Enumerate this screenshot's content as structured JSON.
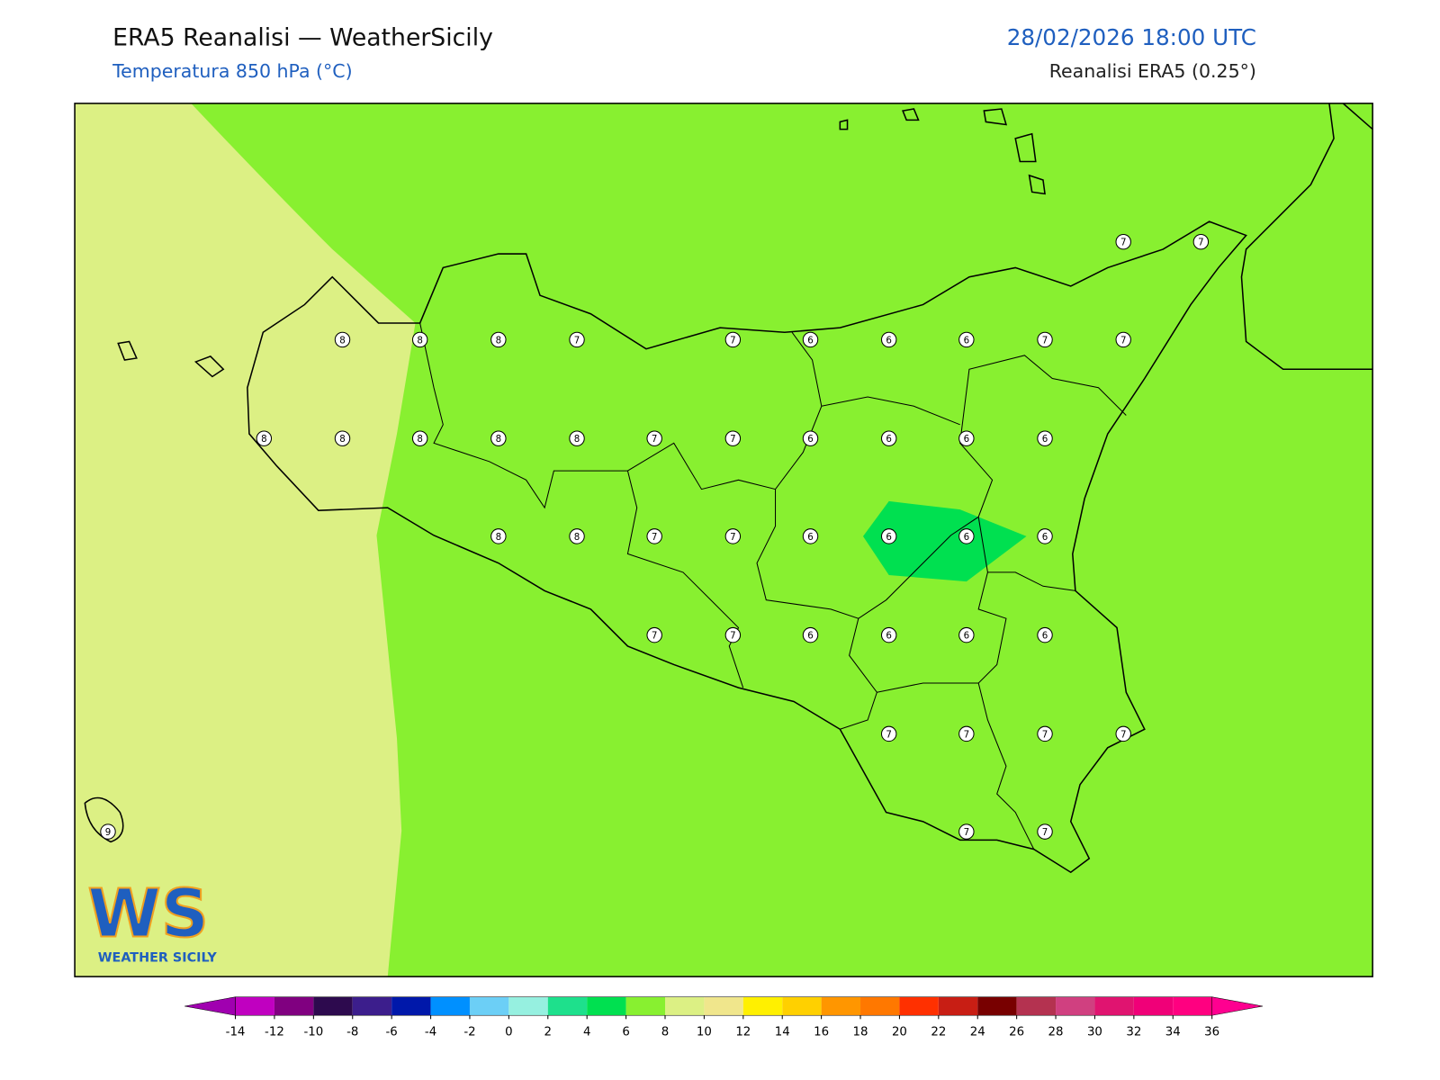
{
  "header": {
    "title": "ERA5 Reanalisi — WeatherSicily",
    "subtitle": "Temperatura 850 hPa (°C)",
    "datetime": "28/02/2026 18:00 UTC",
    "source": "Reanalisi ERA5 (0.25°)"
  },
  "stations": [
    8,
    8,
    8,
    7,
    7,
    6,
    6,
    6,
    7,
    7,
    7,
    7,
    8,
    8,
    8,
    8,
    8,
    7,
    7,
    6,
    6,
    6,
    6,
    8,
    8,
    7,
    7,
    6,
    6,
    6,
    6,
    7,
    7,
    6,
    6,
    6,
    6,
    7,
    7,
    7,
    7,
    9,
    7,
    7
  ],
  "colorbar": {
    "ticks": [
      -14,
      -12,
      -10,
      -8,
      -6,
      -4,
      -2,
      0,
      2,
      4,
      6,
      8,
      10,
      12,
      14,
      16,
      18,
      20,
      22,
      24,
      26,
      28,
      30,
      32,
      34,
      36
    ],
    "colors": [
      "#c000c0",
      "#800080",
      "#2d0a4e",
      "#3c1e8c",
      "#0018aa",
      "#0090ff",
      "#6ccff6",
      "#96f0e0",
      "#1ee08c",
      "#00e050",
      "#88f030",
      "#dcf084",
      "#f0e68c",
      "#fff000",
      "#ffd000",
      "#ff9600",
      "#ff7800",
      "#ff3000",
      "#c81e14",
      "#780000",
      "#b43250",
      "#d04080",
      "#e01470",
      "#f00078",
      "#ff0080"
    ],
    "under": "#a000b0",
    "over": "#ff0090"
  },
  "logo": {
    "mark": "WS",
    "name": "WEATHER SICILY"
  }
}
